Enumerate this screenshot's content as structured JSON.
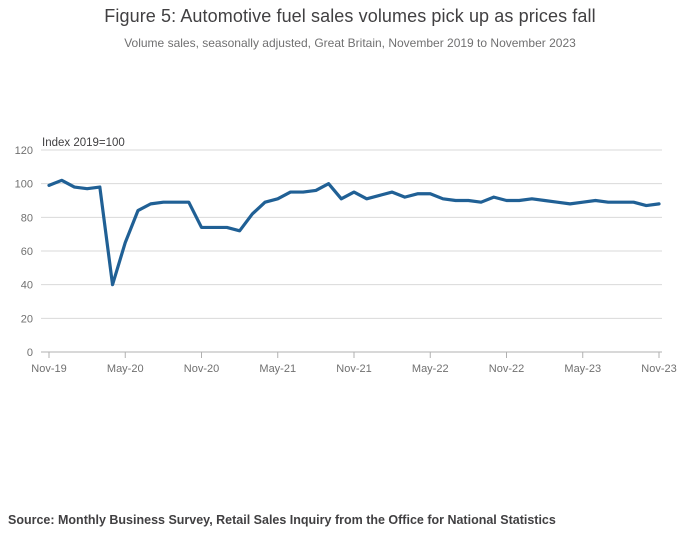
{
  "header": {
    "title": "Figure 5: Automotive fuel sales volumes pick up as prices fall",
    "subtitle": "Volume sales, seasonally adjusted, Great Britain, November 2019 to November 2023"
  },
  "chart_data": {
    "type": "line",
    "title": "Figure 5: Automotive fuel sales volumes pick up as prices fall",
    "subtitle": "Volume sales, seasonally adjusted, Great Britain, November 2019 to November 2023",
    "unit_label": "Index 2019=100",
    "x": [
      "Nov-19",
      "Dec-19",
      "Jan-20",
      "Feb-20",
      "Mar-20",
      "Apr-20",
      "May-20",
      "Jun-20",
      "Jul-20",
      "Aug-20",
      "Sep-20",
      "Oct-20",
      "Nov-20",
      "Dec-20",
      "Jan-21",
      "Feb-21",
      "Mar-21",
      "Apr-21",
      "May-21",
      "Jun-21",
      "Jul-21",
      "Aug-21",
      "Sep-21",
      "Oct-21",
      "Nov-21",
      "Dec-21",
      "Jan-22",
      "Feb-22",
      "Mar-22",
      "Apr-22",
      "May-22",
      "Jun-22",
      "Jul-22",
      "Aug-22",
      "Sep-22",
      "Oct-22",
      "Nov-22",
      "Dec-22",
      "Jan-23",
      "Feb-23",
      "Mar-23",
      "Apr-23",
      "May-23",
      "Jun-23",
      "Jul-23",
      "Aug-23",
      "Sep-23",
      "Oct-23",
      "Nov-23"
    ],
    "series": [
      {
        "name": "Automotive fuel volume sales index",
        "values": [
          99,
          102,
          98,
          97,
          98,
          40,
          65,
          84,
          88,
          89,
          89,
          89,
          74,
          74,
          74,
          72,
          82,
          89,
          91,
          95,
          95,
          96,
          100,
          91,
          95,
          91,
          93,
          95,
          92,
          94,
          94,
          91,
          90,
          90,
          89,
          92,
          90,
          90,
          91,
          90,
          89,
          88,
          89,
          90,
          89,
          89,
          89,
          87,
          88
        ]
      }
    ],
    "x_tick_labels": [
      "Nov-19",
      "May-20",
      "Nov-20",
      "May-21",
      "Nov-21",
      "May-22",
      "Nov-22",
      "May-23",
      "Nov-23"
    ],
    "y_ticks": [
      0,
      20,
      40,
      60,
      80,
      100,
      120
    ],
    "ylim": [
      0,
      120
    ],
    "grid": true,
    "legend": "none",
    "colors": {
      "line": "#206095",
      "gridline": "#d9d9d9",
      "axis": "#b0b0b0",
      "tick_label": "#707070",
      "unit_label": "#414042"
    }
  },
  "footer": {
    "source": "Source: Monthly Business Survey, Retail Sales Inquiry from the Office for National Statistics"
  }
}
